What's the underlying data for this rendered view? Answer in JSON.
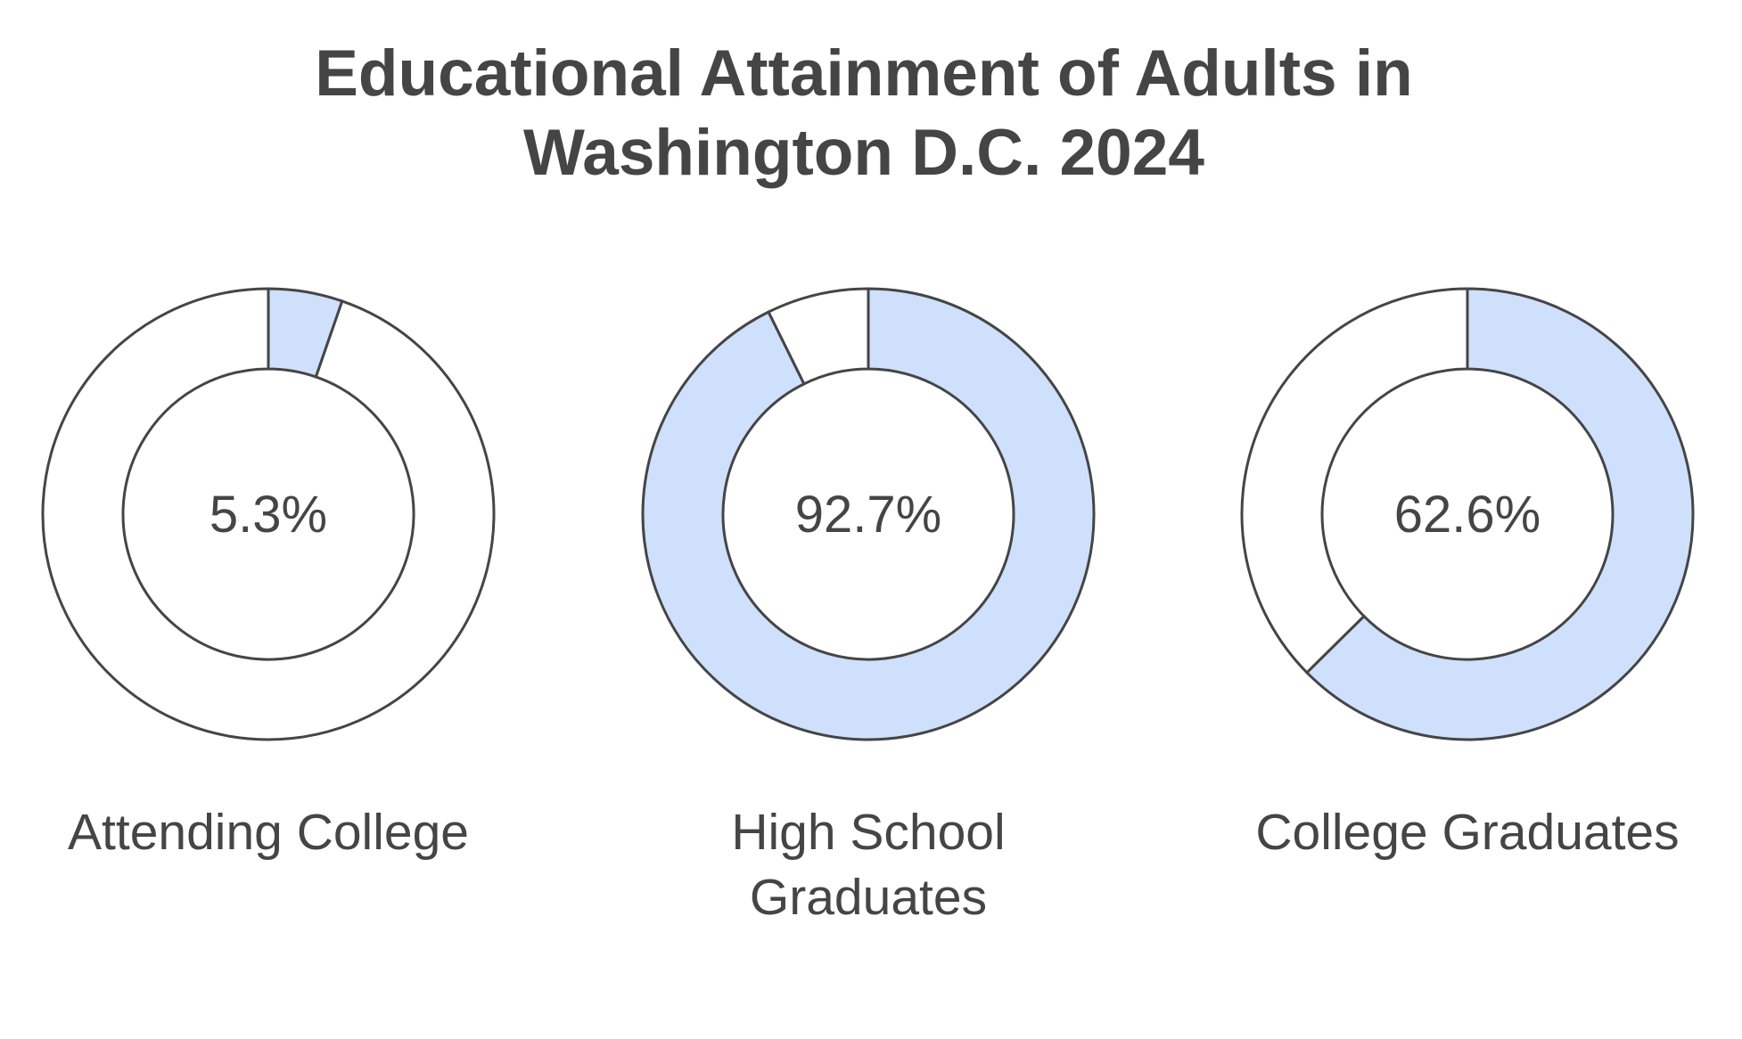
{
  "title": {
    "line1": "Educational Attainment of Adults in",
    "line2": "Washington D.C. 2024"
  },
  "colors": {
    "filled": "#CFE0FC",
    "empty": "#FFFFFF",
    "stroke": "#454545",
    "text": "#454545"
  },
  "charts": [
    {
      "label_line1": "Attending College",
      "label_line2": "",
      "value_label": "5.3%",
      "value": 5.3
    },
    {
      "label_line1": "High School",
      "label_line2": "Graduates",
      "value_label": "92.7%",
      "value": 92.7
    },
    {
      "label_line1": "College Graduates",
      "label_line2": "",
      "value_label": "62.6%",
      "value": 62.6
    }
  ],
  "chart_data": {
    "type": "pie",
    "subtype": "donut",
    "title": "Educational Attainment of Adults in Washington D.C. 2024",
    "categories": [
      "Attending College",
      "High School Graduates",
      "College Graduates"
    ],
    "values": [
      5.3,
      92.7,
      62.6
    ],
    "unit": "%",
    "xlabel": "",
    "ylabel": "",
    "legend": "none",
    "grid": false
  }
}
